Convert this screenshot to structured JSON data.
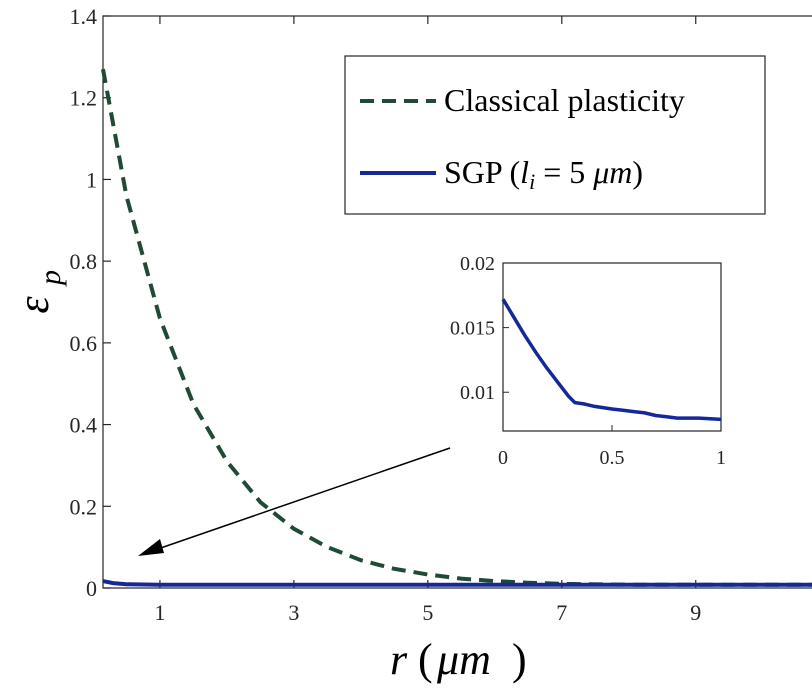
{
  "chart_data": [
    {
      "type": "line",
      "xlabel": "r (μm)",
      "ylabel": "εp",
      "xlim": [
        0.15,
        10.9
      ],
      "ylim": [
        0,
        1.4
      ],
      "xticks": [
        "1",
        "3",
        "5",
        "7",
        "9"
      ],
      "yticks": [
        "0",
        "0.2",
        "0.4",
        "0.6",
        "0.8",
        "1",
        "1.2",
        "1.4"
      ],
      "legend_position": "top-right",
      "series": [
        {
          "name": "Classical plasticity",
          "style": "dashed",
          "color": "#1f4a33",
          "x": [
            0.15,
            0.5,
            1.0,
            1.5,
            2.0,
            2.5,
            3.0,
            3.5,
            4.0,
            4.5,
            5.0,
            5.5,
            6.0,
            6.5,
            7.0,
            8.0,
            9.0,
            10.0,
            10.9
          ],
          "y": [
            1.27,
            0.96,
            0.66,
            0.45,
            0.31,
            0.21,
            0.145,
            0.1,
            0.068,
            0.047,
            0.033,
            0.023,
            0.017,
            0.013,
            0.01,
            0.008,
            0.008,
            0.008,
            0.008
          ]
        },
        {
          "name": "SGP (l_i = 5 μm)",
          "style": "solid",
          "color": "#14289a",
          "x": [
            0.15,
            0.3,
            0.5,
            1.0,
            2.0,
            4.0,
            6.0,
            8.0,
            10.9
          ],
          "y": [
            0.017,
            0.012,
            0.009,
            0.008,
            0.008,
            0.008,
            0.008,
            0.008,
            0.008
          ]
        }
      ]
    },
    {
      "type": "line",
      "role": "inset",
      "xlim": [
        0,
        1
      ],
      "ylim": [
        0.007,
        0.02
      ],
      "xticks": [
        "0",
        "0.5",
        "1"
      ],
      "yticks": [
        "0.01",
        "0.015",
        "0.02"
      ],
      "series": [
        {
          "name": "SGP (l_i = 5 μm)",
          "color": "#14289a",
          "x": [
            0,
            0.05,
            0.1,
            0.15,
            0.2,
            0.25,
            0.3,
            0.33,
            0.37,
            0.42,
            0.5,
            0.55,
            0.6,
            0.65,
            0.7,
            0.75,
            0.8,
            0.9,
            1.0
          ],
          "y": [
            0.0172,
            0.0158,
            0.0144,
            0.0131,
            0.0119,
            0.0108,
            0.0097,
            0.0092,
            0.0091,
            0.0089,
            0.0087,
            0.0086,
            0.0085,
            0.0084,
            0.0082,
            0.0081,
            0.008,
            0.008,
            0.0079
          ]
        }
      ]
    }
  ]
}
